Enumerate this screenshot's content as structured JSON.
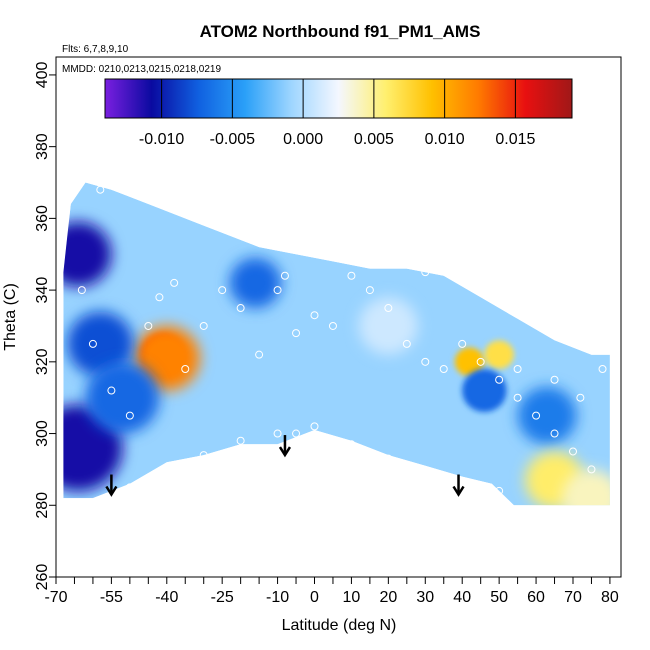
{
  "chart_data": {
    "type": "heatmap",
    "title": "ATOM2 Northbound f91_PM1_AMS",
    "notes": [
      "Flts: 6,7,8,9,10",
      "MMDD: 0210,0213,0215,0218,0219"
    ],
    "xlabel": "Latitude (deg N)",
    "ylabel": "Theta (C)",
    "xlim": [
      -70,
      83
    ],
    "ylim": [
      260,
      405
    ],
    "x_tick_values": [
      -70,
      -55,
      -40,
      -25,
      -10,
      0,
      10,
      20,
      30,
      40,
      50,
      60,
      70,
      80
    ],
    "x_tick_labels": [
      "-70",
      "-55",
      "-40",
      "-25",
      "-10",
      "0",
      "10",
      "20",
      "30",
      "40",
      "50",
      "60",
      "70",
      "80"
    ],
    "x_minor_ticks": [
      -65,
      -60,
      -50,
      -45,
      -35,
      -30,
      -20,
      -15,
      -5,
      5,
      15,
      25,
      35,
      45,
      55,
      65,
      75
    ],
    "y_tick_values": [
      260,
      280,
      300,
      320,
      340,
      360,
      380,
      400
    ],
    "y_tick_labels": [
      "260",
      "280",
      "300",
      "320",
      "340",
      "360",
      "380",
      "400"
    ],
    "colorbar": {
      "range": [
        -0.014,
        0.019
      ],
      "tick_values": [
        -0.01,
        -0.005,
        0.0,
        0.005,
        0.01,
        0.015
      ],
      "tick_labels": [
        "-0.010",
        "-0.005",
        "0.000",
        "0.005",
        "0.010",
        "0.015"
      ],
      "colors": [
        "#7a1fe0",
        "#0a0aa0",
        "#1060e0",
        "#2aa0f8",
        "#9fd6ff",
        "#f4f7ff",
        "#fff070",
        "#ffc000",
        "#ff7a00",
        "#e81010",
        "#a01818"
      ]
    },
    "domain_boundary": [
      [
        -68,
        282
      ],
      [
        -60,
        282
      ],
      [
        -50,
        286
      ],
      [
        -40,
        292
      ],
      [
        -30,
        294
      ],
      [
        -20,
        297
      ],
      [
        -10,
        297
      ],
      [
        0,
        301
      ],
      [
        10,
        298
      ],
      [
        20,
        294
      ],
      [
        30,
        291
      ],
      [
        40,
        288
      ],
      [
        48,
        286
      ],
      [
        54,
        280
      ],
      [
        80,
        280
      ],
      [
        80,
        322
      ],
      [
        75,
        322
      ],
      [
        65,
        326
      ],
      [
        55,
        332
      ],
      [
        45,
        338
      ],
      [
        35,
        344
      ],
      [
        25,
        346
      ],
      [
        15,
        346
      ],
      [
        5,
        348
      ],
      [
        -5,
        350
      ],
      [
        -15,
        352
      ],
      [
        -30,
        358
      ],
      [
        -45,
        364
      ],
      [
        -55,
        368
      ],
      [
        -62,
        370
      ],
      [
        -66,
        364
      ],
      [
        -68,
        345
      ]
    ],
    "features": [
      {
        "lat": -41,
        "theta": 322,
        "value": 0.015,
        "r": 6
      },
      {
        "lat": -40,
        "theta": 321,
        "value": 0.012,
        "r": 9
      },
      {
        "lat": -64,
        "theta": 350,
        "value": -0.011,
        "r": 9
      },
      {
        "lat": -64,
        "theta": 296,
        "value": -0.011,
        "r": 12
      },
      {
        "lat": -58,
        "theta": 325,
        "value": -0.008,
        "r": 9
      },
      {
        "lat": -52,
        "theta": 310,
        "value": -0.007,
        "r": 10
      },
      {
        "lat": -16,
        "theta": 342,
        "value": -0.007,
        "r": 7
      },
      {
        "lat": 42,
        "theta": 320,
        "value": 0.009,
        "r": 4
      },
      {
        "lat": 50,
        "theta": 322,
        "value": 0.007,
        "r": 4
      },
      {
        "lat": 46,
        "theta": 312,
        "value": -0.007,
        "r": 6
      },
      {
        "lat": 63,
        "theta": 305,
        "value": -0.006,
        "r": 8
      },
      {
        "lat": 65,
        "theta": 287,
        "value": 0.006,
        "r": 8
      },
      {
        "lat": 75,
        "theta": 282,
        "value": 0.004,
        "r": 8
      },
      {
        "lat": 20,
        "theta": 330,
        "value": 0.001,
        "r": 8
      }
    ],
    "measurement_points": [
      [
        -58,
        368
      ],
      [
        -63,
        340
      ],
      [
        -60,
        325
      ],
      [
        -55,
        312
      ],
      [
        -50,
        305
      ],
      [
        -45,
        330
      ],
      [
        -42,
        338
      ],
      [
        -38,
        342
      ],
      [
        -35,
        318
      ],
      [
        -30,
        330
      ],
      [
        -25,
        340
      ],
      [
        -20,
        335
      ],
      [
        -15,
        322
      ],
      [
        -10,
        340
      ],
      [
        -8,
        344
      ],
      [
        -5,
        328
      ],
      [
        0,
        333
      ],
      [
        5,
        330
      ],
      [
        10,
        344
      ],
      [
        15,
        340
      ],
      [
        20,
        335
      ],
      [
        25,
        325
      ],
      [
        30,
        320
      ],
      [
        35,
        318
      ],
      [
        40,
        325
      ],
      [
        45,
        320
      ],
      [
        50,
        315
      ],
      [
        55,
        310
      ],
      [
        60,
        305
      ],
      [
        65,
        300
      ],
      [
        70,
        295
      ],
      [
        75,
        290
      ],
      [
        -50,
        285
      ],
      [
        -40,
        290
      ],
      [
        -30,
        294
      ],
      [
        -20,
        298
      ],
      [
        -10,
        300
      ],
      [
        0,
        302
      ],
      [
        10,
        297
      ],
      [
        20,
        293
      ],
      [
        30,
        289
      ],
      [
        40,
        286
      ],
      [
        50,
        284
      ],
      [
        55,
        318
      ],
      [
        65,
        315
      ],
      [
        72,
        310
      ],
      [
        78,
        318
      ],
      [
        -5,
        300
      ],
      [
        30,
        345
      ]
    ],
    "arrows": [
      {
        "lat": -55,
        "theta": 283
      },
      {
        "lat": -8,
        "theta": 294
      },
      {
        "lat": 39,
        "theta": 283
      }
    ]
  }
}
